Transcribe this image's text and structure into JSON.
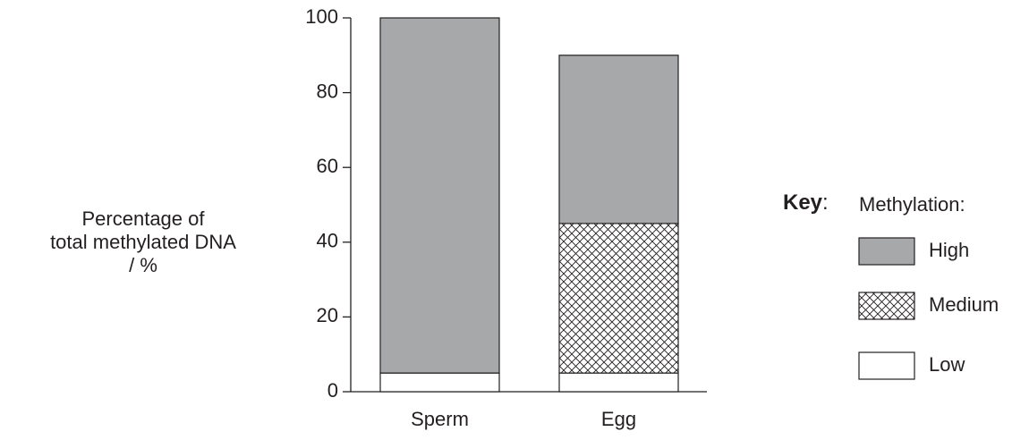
{
  "chart_data": {
    "type": "stacked_bar",
    "ylabel": [
      "Percentage of",
      "total methylated DNA",
      "/ %"
    ],
    "categories": [
      "Sperm",
      "Egg"
    ],
    "series": [
      {
        "name": "Low",
        "color": "#ffffff",
        "values": [
          5,
          5
        ]
      },
      {
        "name": "Medium",
        "color": "#ffffff",
        "pattern": "crosshatch",
        "values": [
          0,
          40
        ]
      },
      {
        "name": "High",
        "color": "#a7a8aa",
        "values": [
          95,
          45
        ]
      }
    ],
    "ylim": [
      0,
      100
    ],
    "yticks": [
      0,
      20,
      40,
      60,
      80,
      100
    ],
    "legend_key": [
      "Key",
      ":"
    ],
    "legend_title": "Methylation:",
    "legend_position": "right"
  }
}
